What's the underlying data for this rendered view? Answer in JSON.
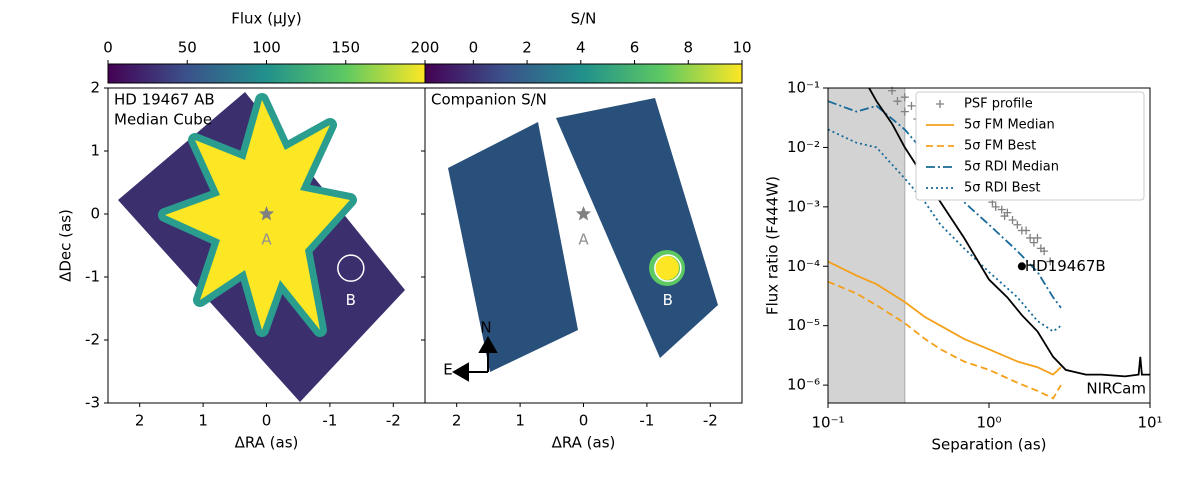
{
  "chart_data": [
    {
      "type": "image",
      "text_lines": [
        "HD 19467 AB",
        "Median Cube"
      ],
      "xlabel": "ΔRA (as)",
      "ylabel": "ΔDec (as)",
      "xlim": [
        2.5,
        -2.5
      ],
      "xticks": [
        2,
        1,
        0,
        -1,
        -2
      ],
      "ylim": [
        -3,
        2
      ],
      "yticks": [
        2,
        1,
        0,
        -1,
        -2,
        -3
      ],
      "show_ytick_labels": true,
      "colorbar": {
        "label": "Flux (μJy)",
        "lim": [
          0,
          200
        ],
        "ticks": [
          0,
          50,
          100,
          150,
          200
        ]
      },
      "annotations": [
        {
          "marker": "star",
          "x": 0,
          "y": 0,
          "color": "#808080"
        },
        {
          "text": "A",
          "x": 0,
          "y": -0.41,
          "color": "#909090"
        },
        {
          "marker": "circle",
          "x": -1.33,
          "y": -0.86,
          "color": "#ffffff"
        },
        {
          "text": "B",
          "x": -1.33,
          "y": -1.37,
          "color": "#ffffff"
        }
      ]
    },
    {
      "type": "image",
      "text_lines": [
        "Companion S/N"
      ],
      "xlabel": "ΔRA (as)",
      "xlim": [
        2.5,
        -2.5
      ],
      "xticks": [
        2,
        1,
        0,
        -1,
        -2
      ],
      "ylim": [
        -3,
        2
      ],
      "yticks": [
        2,
        1,
        0,
        -1,
        -2,
        -3
      ],
      "show_ytick_labels": false,
      "colorbar": {
        "label": "S/N",
        "lim": [
          -1.8,
          10
        ],
        "ticks": [
          0,
          2,
          4,
          6,
          8,
          10
        ]
      },
      "annotations": [
        {
          "marker": "star",
          "x": 0,
          "y": 0,
          "color": "#808080"
        },
        {
          "text": "A",
          "x": 0,
          "y": -0.41,
          "color": "#909090"
        },
        {
          "marker": "circle",
          "x": -1.33,
          "y": -0.86,
          "color": "#ffffff"
        },
        {
          "text": "B",
          "x": -1.33,
          "y": -1.37,
          "color": "#ffffff"
        }
      ],
      "compass": [
        "N",
        "E"
      ]
    },
    {
      "type": "line",
      "xlabel": "Separation (as)",
      "ylabel": "Flux ratio (F444W)",
      "xscale": "log",
      "yscale": "log",
      "xlim": [
        0.1,
        10
      ],
      "xticks": [
        {
          "value": 0.1,
          "label": "10⁻¹"
        },
        {
          "value": 1,
          "label": "10⁰"
        },
        {
          "value": 10,
          "label": "10¹"
        }
      ],
      "ylim": [
        5e-07,
        0.1
      ],
      "yticks": [
        {
          "value": 0.1,
          "label": "10⁻¹"
        },
        {
          "value": 0.01,
          "label": "10⁻²"
        },
        {
          "value": 0.001,
          "label": "10⁻³"
        },
        {
          "value": 0.0001,
          "label": "10⁻⁴"
        },
        {
          "value": 1e-05,
          "label": "10⁻⁵"
        },
        {
          "value": 1e-06,
          "label": "10⁻⁶"
        }
      ],
      "shade": [
        0.1,
        0.3
      ],
      "shade_color": "#d3d3d3",
      "legend": "upper right",
      "series": [
        {
          "name": "PSF profile",
          "kind": "scatter",
          "marker": "+",
          "color": "#808080",
          "legend": true,
          "x": [
            0.25,
            0.27,
            0.3,
            0.3,
            0.33,
            0.36,
            0.4,
            0.42,
            0.45,
            0.5,
            0.52,
            0.55,
            0.6,
            0.62,
            0.65,
            0.7,
            0.72,
            0.75,
            0.8,
            0.85,
            0.9,
            0.95,
            1.0,
            1.05,
            1.1,
            1.2,
            1.25,
            1.3,
            1.4,
            1.5,
            1.6,
            1.7,
            1.8,
            1.9,
            2.0,
            2.1,
            2.2,
            2.4
          ],
          "values": [
            0.09,
            0.06,
            0.07,
            0.04,
            0.05,
            0.03,
            0.025,
            0.015,
            0.02,
            0.012,
            0.008,
            0.01,
            0.008,
            0.005,
            0.006,
            0.005,
            0.0035,
            0.004,
            0.003,
            0.0025,
            0.002,
            0.0018,
            0.0015,
            0.0012,
            0.001,
            0.0009,
            0.0007,
            0.0008,
            0.0006,
            0.0005,
            0.0004,
            0.0004,
            0.0003,
            0.00025,
            0.0003,
            0.0002,
            0.00018,
            0.00012
          ]
        },
        {
          "name": "5σ FM Median",
          "kind": "line",
          "style": "solid",
          "color": "#f5a01a",
          "legend": true,
          "x": [
            0.1,
            0.15,
            0.2,
            0.3,
            0.4,
            0.5,
            0.7,
            1,
            1.5,
            2,
            2.5,
            2.8
          ],
          "values": [
            0.00012,
            7e-05,
            5e-05,
            2.5e-05,
            1.4e-05,
            1e-05,
            6e-06,
            4e-06,
            2.5e-06,
            2e-06,
            1.5e-06,
            2e-06
          ]
        },
        {
          "name": "5σ FM Best",
          "kind": "line",
          "style": "dashed",
          "color": "#f5a01a",
          "legend": true,
          "x": [
            0.1,
            0.15,
            0.2,
            0.3,
            0.4,
            0.5,
            0.7,
            1,
            1.5,
            2,
            2.5,
            2.8
          ],
          "values": [
            5.5e-05,
            3.5e-05,
            2.2e-05,
            1.1e-05,
            6e-06,
            4e-06,
            2.5e-06,
            1.8e-06,
            1.1e-06,
            8e-07,
            6e-07,
            1e-06
          ]
        },
        {
          "name": "5σ RDI Median",
          "kind": "line",
          "style": "dashdot",
          "color": "#176a9a",
          "legend": true,
          "x": [
            0.1,
            0.15,
            0.2,
            0.3,
            0.4,
            0.5,
            0.7,
            1,
            1.5,
            2,
            2.5,
            2.8
          ],
          "values": [
            0.06,
            0.04,
            0.05,
            0.02,
            0.008,
            0.0035,
            0.0012,
            0.0005,
            0.00018,
            8e-05,
            3e-05,
            2e-05
          ]
        },
        {
          "name": "5σ RDI Best",
          "kind": "line",
          "style": "dotted",
          "color": "#176a9a",
          "legend": true,
          "x": [
            0.1,
            0.15,
            0.2,
            0.3,
            0.4,
            0.5,
            0.7,
            1,
            1.5,
            2,
            2.5,
            2.8
          ],
          "values": [
            0.02,
            0.012,
            0.01,
            0.003,
            0.0012,
            0.0005,
            0.0002,
            8e-05,
            3e-05,
            1.2e-05,
            8e-06,
            1e-05
          ]
        },
        {
          "name": "NIRCam",
          "kind": "line",
          "style": "solid",
          "color": "#000000",
          "legend": false,
          "x": [
            0.18,
            0.2,
            0.25,
            0.3,
            0.4,
            0.5,
            0.7,
            1.0,
            1.3,
            1.6,
            2,
            2.5,
            3,
            4,
            5,
            7,
            8.5,
            8.7,
            8.9,
            10
          ],
          "values": [
            0.1,
            0.06,
            0.025,
            0.01,
            0.003,
            0.0012,
            0.0003,
            6e-05,
            3e-05,
            1.5e-05,
            8e-06,
            3e-06,
            1.8e-06,
            1.5e-06,
            1.5e-06,
            1.4e-06,
            1.5e-06,
            3e-06,
            1.5e-06,
            1.5e-06
          ]
        }
      ],
      "annotations": [
        {
          "text": "HD19467B",
          "x": 1.6,
          "y": 0.0001,
          "color": "#000000"
        }
      ]
    }
  ]
}
